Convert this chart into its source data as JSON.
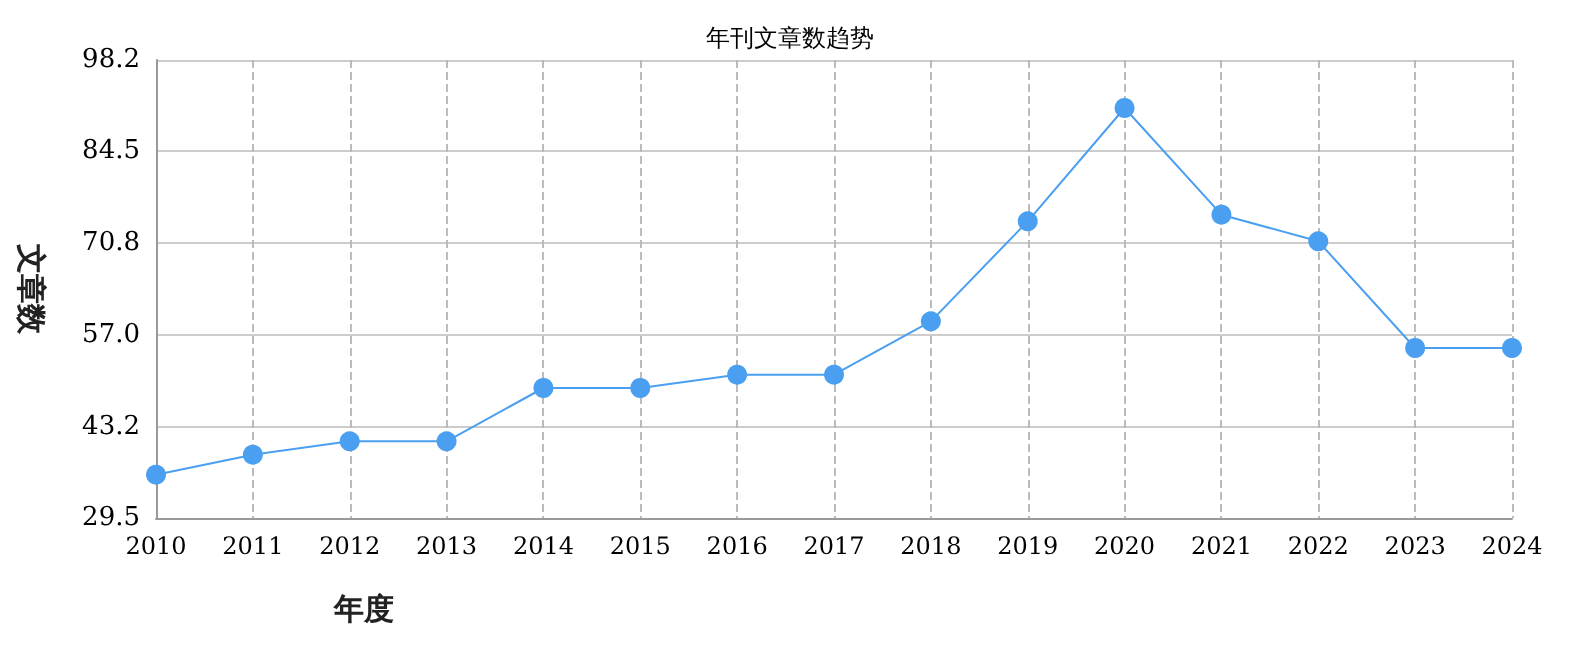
{
  "chart_data": {
    "type": "line",
    "title": "年刊文章数趋势",
    "xlabel": "年度",
    "ylabel": "文章数",
    "categories": [
      "2010",
      "2011",
      "2012",
      "2013",
      "2014",
      "2015",
      "2016",
      "2017",
      "2018",
      "2019",
      "2020",
      "2021",
      "2022",
      "2023",
      "2024"
    ],
    "series": [
      {
        "color": "#4a9ff0",
        "values": [
          36,
          39,
          41,
          41,
          49,
          49,
          51,
          51,
          59,
          74,
          91,
          75,
          71,
          55,
          55
        ]
      }
    ],
    "ylim": [
      29.5,
      98.2
    ],
    "yticks": [
      29.5,
      43.2,
      {
        "value": 57,
        "label": "57.0"
      },
      70.8,
      84.5,
      98.2
    ],
    "grid": true,
    "marker": "circle",
    "line_style": "solid"
  }
}
